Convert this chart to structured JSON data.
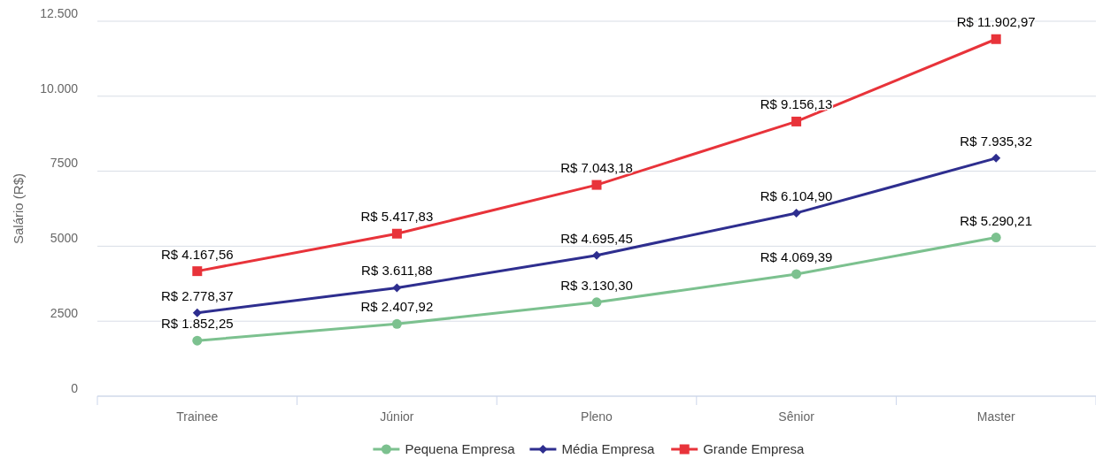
{
  "chart_data": {
    "type": "line",
    "ylabel": "Salário (R$)",
    "categories": [
      "Trainee",
      "Júnior",
      "Pleno",
      "Sênior",
      "Master"
    ],
    "ylim": [
      0,
      12500
    ],
    "yticks": [
      0,
      2500,
      5000,
      7500,
      {
        "value": 10000,
        "label": "10.000"
      },
      {
        "value": 12500,
        "label": "12.500"
      }
    ],
    "grid": "y",
    "legend": "bottom",
    "line_style": "solid",
    "series": [
      {
        "name": "Pequena Empresa",
        "color": "#7cc18f",
        "marker": "circle",
        "values": [
          1852.25,
          2407.92,
          3130.3,
          4069.39,
          5290.21
        ],
        "value_labels": [
          "R$ 1.852,25",
          "R$ 2.407,92",
          "R$ 3.130,30",
          "R$ 4.069,39",
          "R$ 5.290,21"
        ]
      },
      {
        "name": "Média Empresa",
        "color": "#2e2e8f",
        "marker": "diamond",
        "values": [
          2778.37,
          3611.88,
          4695.45,
          6104.9,
          7935.32
        ],
        "value_labels": [
          "R$ 2.778,37",
          "R$ 3.611,88",
          "R$ 4.695,45",
          "R$ 6.104,90",
          "R$ 7.935,32"
        ]
      },
      {
        "name": "Grande Empresa",
        "color": "#e8333a",
        "marker": "square",
        "values": [
          4167.56,
          5417.83,
          7043.18,
          9156.13,
          11902.97
        ],
        "value_labels": [
          "R$ 4.167,56",
          "R$ 5.417,83",
          "R$ 7.043,18",
          "R$ 9.156,13",
          "R$ 11.902,97"
        ]
      }
    ]
  }
}
